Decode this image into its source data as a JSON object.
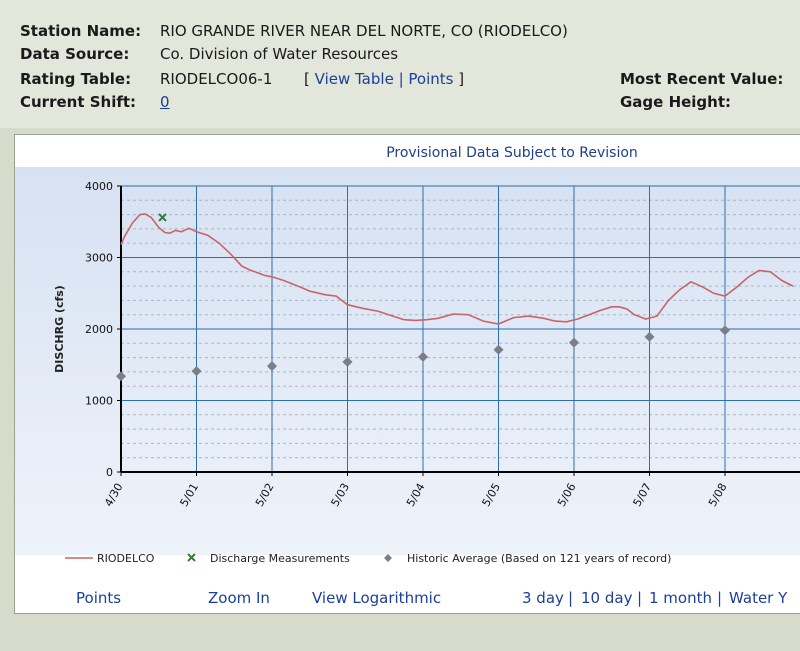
{
  "station": {
    "name_label": "Station Name:",
    "name_value": "RIO GRANDE RIVER NEAR DEL NORTE, CO (RIODELCO)",
    "source_label": "Data Source:",
    "source_value": "Co. Division of Water Resources",
    "rating_label": "Rating Table:",
    "rating_value": "RIODELCO06-1",
    "bracket_open": "[",
    "view_table": "View Table",
    "pipe": "|",
    "points": "Points",
    "bracket_close": "]",
    "shift_label": "Current Shift:",
    "shift_value": "0",
    "recent_label": "Most Recent Value:",
    "gage_label": "Gage Height:"
  },
  "chart_data": {
    "type": "line",
    "title": "Provisional Data Subject to Revision",
    "ylabel": "DISCHRG (cfs)",
    "ylim": [
      0,
      4000
    ],
    "yticks": [
      "0",
      "1000",
      "2000",
      "3000",
      "4000"
    ],
    "xticks": [
      "4/30",
      "5/01",
      "5/02",
      "5/03",
      "5/04",
      "5/05",
      "5/06",
      "5/07",
      "5/08"
    ],
    "grid": true,
    "legend_position": "bottom",
    "series": [
      {
        "name": "RIODELCO",
        "color": "#c86468",
        "x": [
          0,
          0.05,
          0.15,
          0.25,
          0.32,
          0.4,
          0.5,
          0.58,
          0.65,
          0.72,
          0.8,
          0.9,
          1.0,
          1.15,
          1.3,
          1.45,
          1.6,
          1.7,
          1.8,
          1.9,
          2.0,
          2.15,
          2.3,
          2.5,
          2.7,
          2.85,
          3.0,
          3.2,
          3.4,
          3.6,
          3.75,
          3.9,
          4.05,
          4.2,
          4.4,
          4.6,
          4.8,
          5.0,
          5.2,
          5.4,
          5.6,
          5.75,
          5.9,
          6.05,
          6.2,
          6.35,
          6.5,
          6.6,
          6.7,
          6.8,
          6.95,
          7.1,
          7.25,
          7.4,
          7.55,
          7.7,
          7.85,
          8.0,
          8.15,
          8.3,
          8.45,
          8.6,
          8.75,
          8.9
        ],
        "values": [
          3180,
          3300,
          3480,
          3600,
          3610,
          3560,
          3420,
          3350,
          3340,
          3380,
          3360,
          3410,
          3360,
          3310,
          3200,
          3050,
          2880,
          2830,
          2790,
          2750,
          2730,
          2680,
          2620,
          2530,
          2480,
          2460,
          2340,
          2290,
          2250,
          2180,
          2130,
          2120,
          2130,
          2150,
          2210,
          2200,
          2110,
          2070,
          2160,
          2180,
          2150,
          2110,
          2100,
          2140,
          2200,
          2260,
          2310,
          2310,
          2280,
          2200,
          2140,
          2180,
          2400,
          2550,
          2660,
          2590,
          2500,
          2460,
          2580,
          2720,
          2820,
          2800,
          2680,
          2600
        ]
      },
      {
        "name": "Discharge Measurements",
        "color": "#2f7f3b",
        "x": [
          0.55
        ],
        "values": [
          3560
        ]
      },
      {
        "name": "Historic Average (Based on 121 years of record)",
        "color": "#7a7f87",
        "x": [
          0,
          1,
          2,
          3,
          4,
          5,
          6,
          7,
          8
        ],
        "values": [
          1340,
          1410,
          1480,
          1540,
          1610,
          1710,
          1810,
          1890,
          1980
        ]
      }
    ]
  },
  "footer": {
    "points": "Points",
    "zoom": "Zoom In",
    "log": "View Logarithmic",
    "d3": "3 day",
    "d10": "10 day",
    "m1": "1 month",
    "wy": "Water Y",
    "pipe": "|"
  },
  "colors": {
    "plot_top": "#d6e1f2",
    "plot_bottom": "#eef3fa",
    "grid_major": "#2d6db0",
    "grid_minor": "#a9b6c8"
  }
}
